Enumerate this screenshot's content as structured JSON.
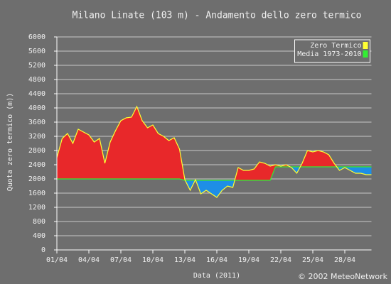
{
  "chart_data": {
    "type": "area-diff",
    "title": "Milano Linate (103 m) - Andamento dello zero termico",
    "x_label": "Data (2011)",
    "y_label": "Quota zero termico (m))",
    "credit": "© 2002 MeteoNetwork",
    "x": [
      1,
      1.5,
      2,
      2.5,
      3,
      3.5,
      4,
      4.5,
      5,
      5.5,
      6,
      6.5,
      7,
      7.5,
      8,
      8.5,
      9,
      9.5,
      10,
      10.5,
      11,
      11.5,
      12,
      12.5,
      13,
      13.5,
      14,
      14.5,
      15,
      15.5,
      16,
      16.5,
      17,
      17.5,
      18,
      18.5,
      19,
      19.5,
      20,
      20.5,
      21,
      21.5,
      22,
      22.5,
      23,
      23.5,
      24,
      24.5,
      25,
      25.5,
      26,
      26.5,
      27,
      27.5,
      28,
      28.5,
      29,
      29.5,
      30,
      30.5
    ],
    "series": [
      {
        "name": "Zero Termico",
        "color": "#ffff33",
        "values": [
          2600,
          3140,
          3280,
          3000,
          3400,
          3320,
          3240,
          3040,
          3140,
          2440,
          3040,
          3360,
          3640,
          3720,
          3740,
          4040,
          3640,
          3440,
          3520,
          3280,
          3200,
          3080,
          3160,
          2840,
          1980,
          1680,
          1980,
          1580,
          1680,
          1580,
          1480,
          1680,
          1800,
          1760,
          2320,
          2240,
          2240,
          2280,
          2480,
          2440,
          2360,
          2400,
          2360,
          2400,
          2320,
          2160,
          2440,
          2800,
          2760,
          2800,
          2760,
          2680,
          2440,
          2240,
          2320,
          2240,
          2160,
          2160,
          2120,
          2120
        ]
      },
      {
        "name": "Media 1973-2010",
        "color": "#33ee33",
        "values": [
          2000,
          2000,
          2000,
          2000,
          2000,
          2000,
          2000,
          2000,
          2000,
          2000,
          2000,
          2000,
          2000,
          2000,
          2000,
          2000,
          2000,
          2000,
          2000,
          2000,
          2000,
          2000,
          2000,
          2000,
          1960,
          1960,
          1960,
          1960,
          1960,
          1960,
          1960,
          1960,
          1960,
          1960,
          1960,
          1960,
          1960,
          1960,
          1960,
          1960,
          1960,
          2340,
          2340,
          2340,
          2340,
          2340,
          2340,
          2340,
          2340,
          2340,
          2340,
          2340,
          2340,
          2340,
          2340,
          2340,
          2340,
          2340,
          2340,
          2340
        ]
      }
    ],
    "above_color": "#e8282a",
    "below_color": "#1e8ee6",
    "xlim": [
      1,
      30.5
    ],
    "xticks": [
      {
        "value": 1,
        "label": "01/04"
      },
      {
        "value": 4,
        "label": "04/04"
      },
      {
        "value": 7,
        "label": "07/04"
      },
      {
        "value": 10,
        "label": "10/04"
      },
      {
        "value": 13,
        "label": "13/04"
      },
      {
        "value": 16,
        "label": "16/04"
      },
      {
        "value": 19,
        "label": "19/04"
      },
      {
        "value": 22,
        "label": "22/04"
      },
      {
        "value": 25,
        "label": "25/04"
      },
      {
        "value": 28,
        "label": "28/04"
      }
    ],
    "ylim": [
      0,
      6000
    ],
    "yticks": [
      0,
      400,
      800,
      1200,
      1600,
      2000,
      2400,
      2800,
      3200,
      3600,
      4000,
      4400,
      4800,
      5200,
      5600,
      6000
    ],
    "grid": true,
    "legend": "upper right"
  }
}
